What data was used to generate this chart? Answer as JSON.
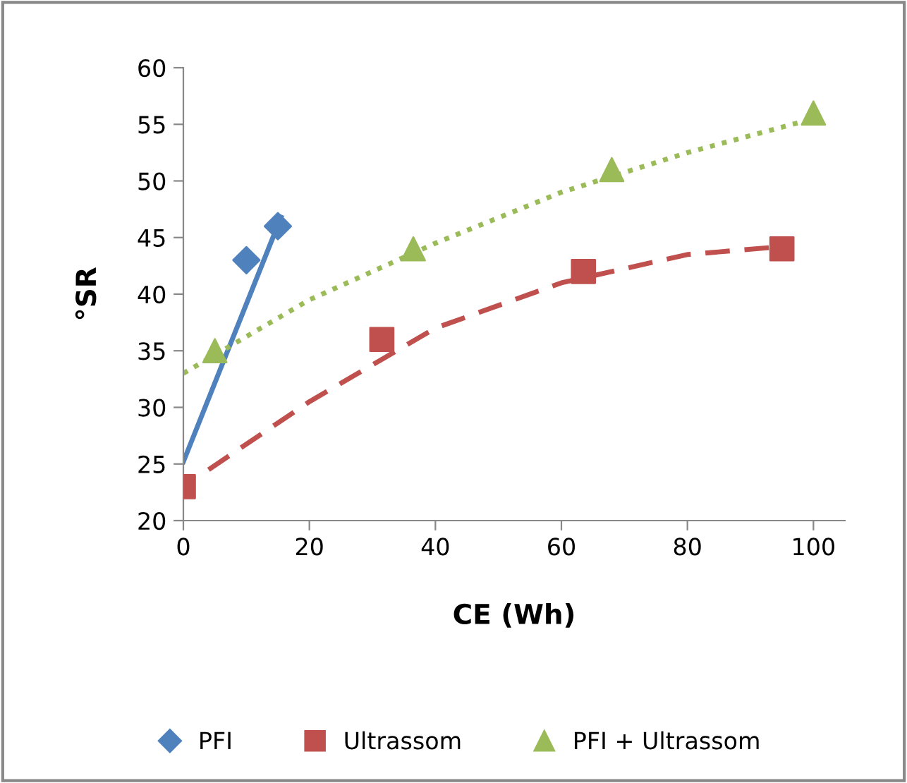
{
  "chart_data": {
    "type": "scatter",
    "xlabel": "CE (Wh)",
    "ylabel": "°SR",
    "xlim": [
      0,
      105
    ],
    "ylim": [
      20,
      60
    ],
    "xticks": [
      0,
      20,
      40,
      60,
      80,
      100
    ],
    "yticks": [
      20,
      25,
      30,
      35,
      40,
      45,
      50,
      55,
      60
    ],
    "grid": false,
    "legend": "bottom",
    "series": [
      {
        "name": "PFI",
        "color": "#4f81bd",
        "marker": "diamond",
        "x": [
          10,
          15
        ],
        "values": [
          43,
          46
        ]
      },
      {
        "name": "Ultrassom",
        "color": "#c0504d",
        "marker": "square",
        "x": [
          0,
          31.5,
          63.5,
          95
        ],
        "values": [
          23,
          36,
          42,
          44
        ]
      },
      {
        "name": "PFI + Ultrassom",
        "color": "#9bbb59",
        "marker": "triangle",
        "x": [
          5,
          36.5,
          68,
          100
        ],
        "values": [
          35,
          44,
          51,
          56
        ]
      },
      {
        "type": "line",
        "color": "#4f81bd",
        "line_style": "solid",
        "x": [
          0,
          15.5
        ],
        "values": [
          25.2,
          46.8
        ]
      },
      {
        "type": "line",
        "color": "#c0504d",
        "line_style": "dashed",
        "x": [
          4,
          20,
          40,
          60,
          80,
          95
        ],
        "values": [
          24.5,
          30.5,
          37,
          41,
          43.5,
          44.2
        ]
      },
      {
        "type": "line",
        "color": "#9bbb59",
        "line_style": "dotted",
        "x": [
          0,
          20,
          40,
          60,
          80,
          100
        ],
        "values": [
          33,
          39.5,
          44.5,
          49,
          52.5,
          55.5
        ]
      }
    ]
  }
}
